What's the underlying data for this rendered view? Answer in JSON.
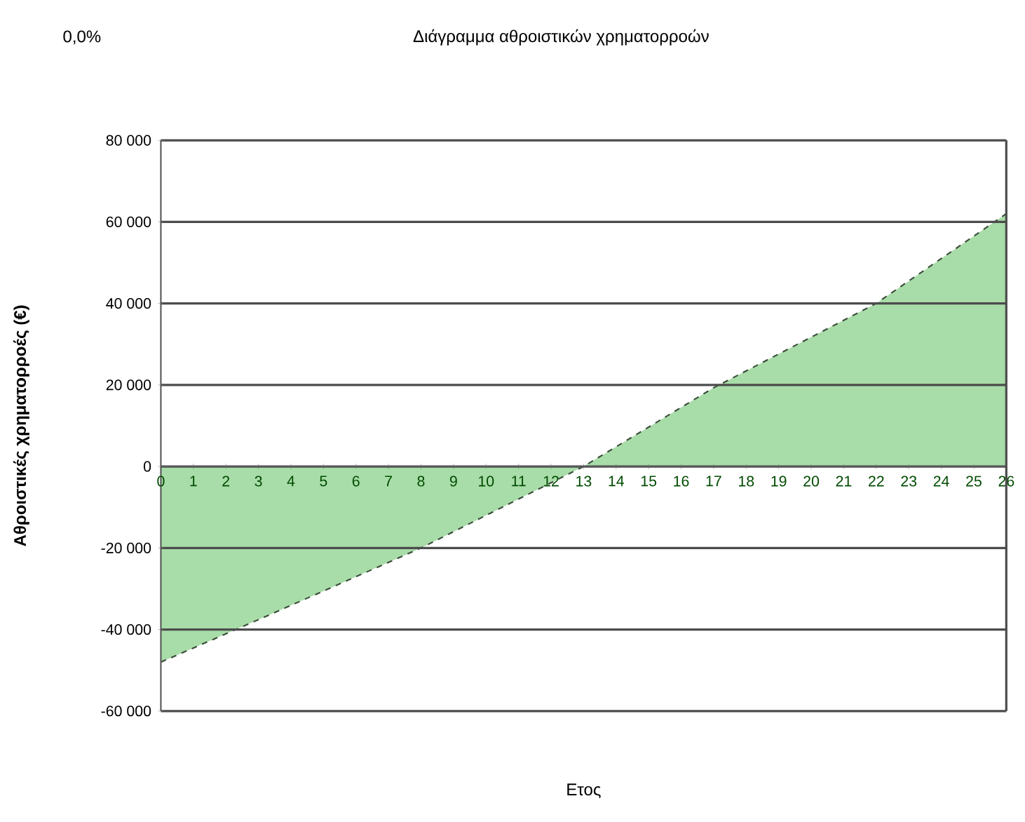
{
  "chart_data": {
    "type": "area",
    "title": "Διάγραμμα αθροιστικών χρηματορροών",
    "xlabel": "Ετος",
    "ylabel": "Αθροιστικές χρηματορροές (€)",
    "annotations": [
      "0,0%"
    ],
    "x": [
      0,
      3,
      8,
      13,
      17,
      22,
      26
    ],
    "values": [
      -48000,
      -37600,
      -20000,
      0,
      19300,
      40000,
      62000
    ],
    "color": "#a8dca8",
    "line_style": "dashed",
    "grid": "y",
    "xlim": [
      0,
      26
    ],
    "xticks": [
      0,
      1,
      2,
      3,
      4,
      5,
      6,
      7,
      8,
      9,
      10,
      11,
      12,
      13,
      14,
      15,
      16,
      17,
      18,
      19,
      20,
      21,
      22,
      23,
      24,
      25,
      26
    ],
    "ylim": [
      -60000,
      80000
    ],
    "yticks": [
      {
        "value": -60000,
        "label": "-60 000"
      },
      {
        "value": -40000,
        "label": "-40 000"
      },
      {
        "value": -20000,
        "label": "-20 000"
      },
      0,
      {
        "value": 20000,
        "label": "20 000"
      },
      {
        "value": 40000,
        "label": "40 000"
      },
      {
        "value": 60000,
        "label": "60 000"
      },
      {
        "value": 80000,
        "label": "80 000"
      }
    ]
  }
}
